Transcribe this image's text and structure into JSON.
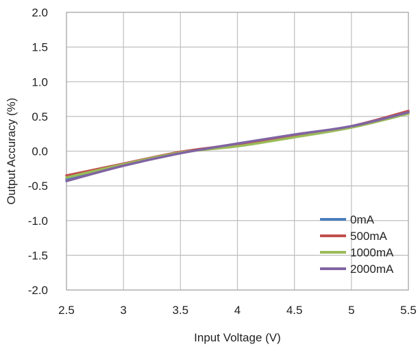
{
  "chart_data": {
    "type": "line",
    "title": "",
    "xlabel": "Input Voltage (V)",
    "ylabel": "Output Accuracy (%)",
    "xlim": [
      2.5,
      5.5
    ],
    "ylim": [
      -2.0,
      2.0
    ],
    "x_ticks": [
      2.5,
      3,
      3.5,
      4,
      4.5,
      5,
      5.5
    ],
    "x_tick_labels": [
      "2.5",
      "3",
      "3.5",
      "4",
      "4.5",
      "5",
      "5.5"
    ],
    "y_ticks": [
      2.0,
      1.5,
      1.0,
      0.5,
      0.0,
      -0.5,
      -1.0,
      -1.5,
      -2.0
    ],
    "y_tick_labels": [
      "2.0",
      "1.5",
      "1.0",
      "0.5",
      "0.0",
      "-0.5",
      "-1.0",
      "-1.5",
      "-2.0"
    ],
    "grid": true,
    "legend_position": "bottom-right",
    "x": [
      2.5,
      3.0,
      3.5,
      4.0,
      4.5,
      5.0,
      5.5
    ],
    "series": [
      {
        "name": "0mA",
        "color": "#4a7ebb",
        "values": [
          -0.4,
          -0.2,
          -0.02,
          0.1,
          0.23,
          0.36,
          0.57
        ]
      },
      {
        "name": "500mA",
        "color": "#c0504d",
        "values": [
          -0.35,
          -0.18,
          -0.01,
          0.1,
          0.23,
          0.36,
          0.58
        ]
      },
      {
        "name": "1000mA",
        "color": "#9bbb59",
        "values": [
          -0.38,
          -0.19,
          -0.02,
          0.07,
          0.2,
          0.34,
          0.54
        ]
      },
      {
        "name": "2000mA",
        "color": "#8064a2",
        "values": [
          -0.43,
          -0.21,
          -0.03,
          0.11,
          0.24,
          0.36,
          0.56
        ]
      }
    ]
  }
}
